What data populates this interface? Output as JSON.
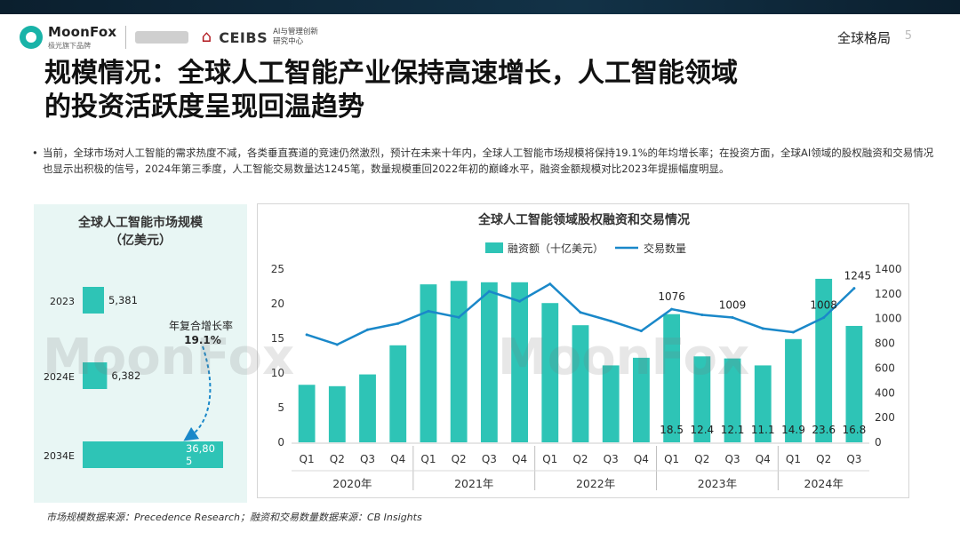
{
  "header": {
    "moonfox_name": "MoonFox",
    "moonfox_slogan": "极光旗下品牌",
    "ceibs_name": "CEIBS",
    "ceibs_sub_1": "AI与管理创新",
    "ceibs_sub_2": "研究中心",
    "section": "全球格局",
    "page": "5"
  },
  "title": {
    "line1": "规模情况：全球人工智能产业保持高速增长，人工智能领域",
    "line2": "的投资活跃度呈现回温趋势"
  },
  "bullet": "当前，全球市场对人工智能的需求热度不减，各类垂直赛道的竞速仍然激烈，预计在未来十年内，全球人工智能市场规模将保持19.1%的年均增长率；在投资方面，全球AI领域的股权融资和交易情况也显示出积极的信号，2024年第三季度，人工智能交易数量达1245笔，数量规模重回2022年初的巅峰水平，融资金额规模对比2023年提振幅度明显。",
  "watermark": "MoonFox",
  "footer": "市场规模数据来源：Precedence Research；融资和交易数量数据来源：CB Insights",
  "chart_data": [
    {
      "type": "bar",
      "title": "全球人工智能市场规模",
      "subtitle": "（亿美元）",
      "orientation": "horizontal",
      "categories": [
        "2023",
        "2024E",
        "2034E"
      ],
      "values": [
        5381,
        6382,
        36805
      ],
      "value_labels": [
        "5,381",
        "6,382",
        "36,80\n5"
      ],
      "annotation": {
        "label": "年复合增长率",
        "value": "19.1%"
      },
      "bar_color": "#2ec4b6"
    },
    {
      "type": "bar",
      "title": "全球人工智能领域股权融资和交易情况",
      "legend": [
        "融资额（十亿美元）",
        "交易数量"
      ],
      "legend_placement": "top",
      "quarters": [
        "Q1",
        "Q2",
        "Q3",
        "Q4",
        "Q1",
        "Q2",
        "Q3",
        "Q4",
        "Q1",
        "Q2",
        "Q3",
        "Q4",
        "Q1",
        "Q2",
        "Q3",
        "Q4",
        "Q1",
        "Q2",
        "Q3"
      ],
      "years": [
        {
          "label": "2020年",
          "count": 4
        },
        {
          "label": "2021年",
          "count": 4
        },
        {
          "label": "2022年",
          "count": 4
        },
        {
          "label": "2023年",
          "count": 4
        },
        {
          "label": "2024年",
          "count": 3
        }
      ],
      "series": [
        {
          "name": "融资额（十亿美元）",
          "type": "bar",
          "axis": "left",
          "color": "#2ec4b6",
          "values": [
            8.3,
            8.1,
            9.8,
            14.0,
            22.8,
            23.3,
            23.1,
            23.1,
            20.1,
            16.9,
            11.1,
            12.2,
            18.5,
            12.4,
            12.1,
            11.1,
            14.9,
            23.6,
            16.8
          ],
          "labels": [
            "",
            "",
            "",
            "",
            "",
            "",
            "",
            "",
            "",
            "",
            "",
            "",
            "18.5",
            "12.4",
            "12.1",
            "11.1",
            "14.9",
            "23.6",
            "16.8"
          ]
        },
        {
          "name": "交易数量",
          "type": "line",
          "axis": "right",
          "color": "#1a88c9",
          "values": [
            870,
            790,
            910,
            960,
            1060,
            1010,
            1220,
            1140,
            1280,
            1050,
            980,
            900,
            1076,
            1030,
            1009,
            920,
            890,
            1008,
            1245
          ],
          "labels": [
            "",
            "",
            "",
            "",
            "",
            "",
            "",
            "",
            "",
            "",
            "",
            "",
            "1076",
            "",
            "1009",
            "",
            "",
            "1008",
            "1245"
          ]
        }
      ],
      "y_left": {
        "range": [
          0,
          25
        ],
        "ticks": [
          "0",
          "5",
          "10",
          "15",
          "20",
          "25"
        ]
      },
      "y_right": {
        "range": [
          0,
          1400
        ],
        "ticks": [
          "0",
          "200",
          "400",
          "600",
          "800",
          "1000",
          "1200",
          "1400"
        ]
      },
      "grid": false
    }
  ]
}
